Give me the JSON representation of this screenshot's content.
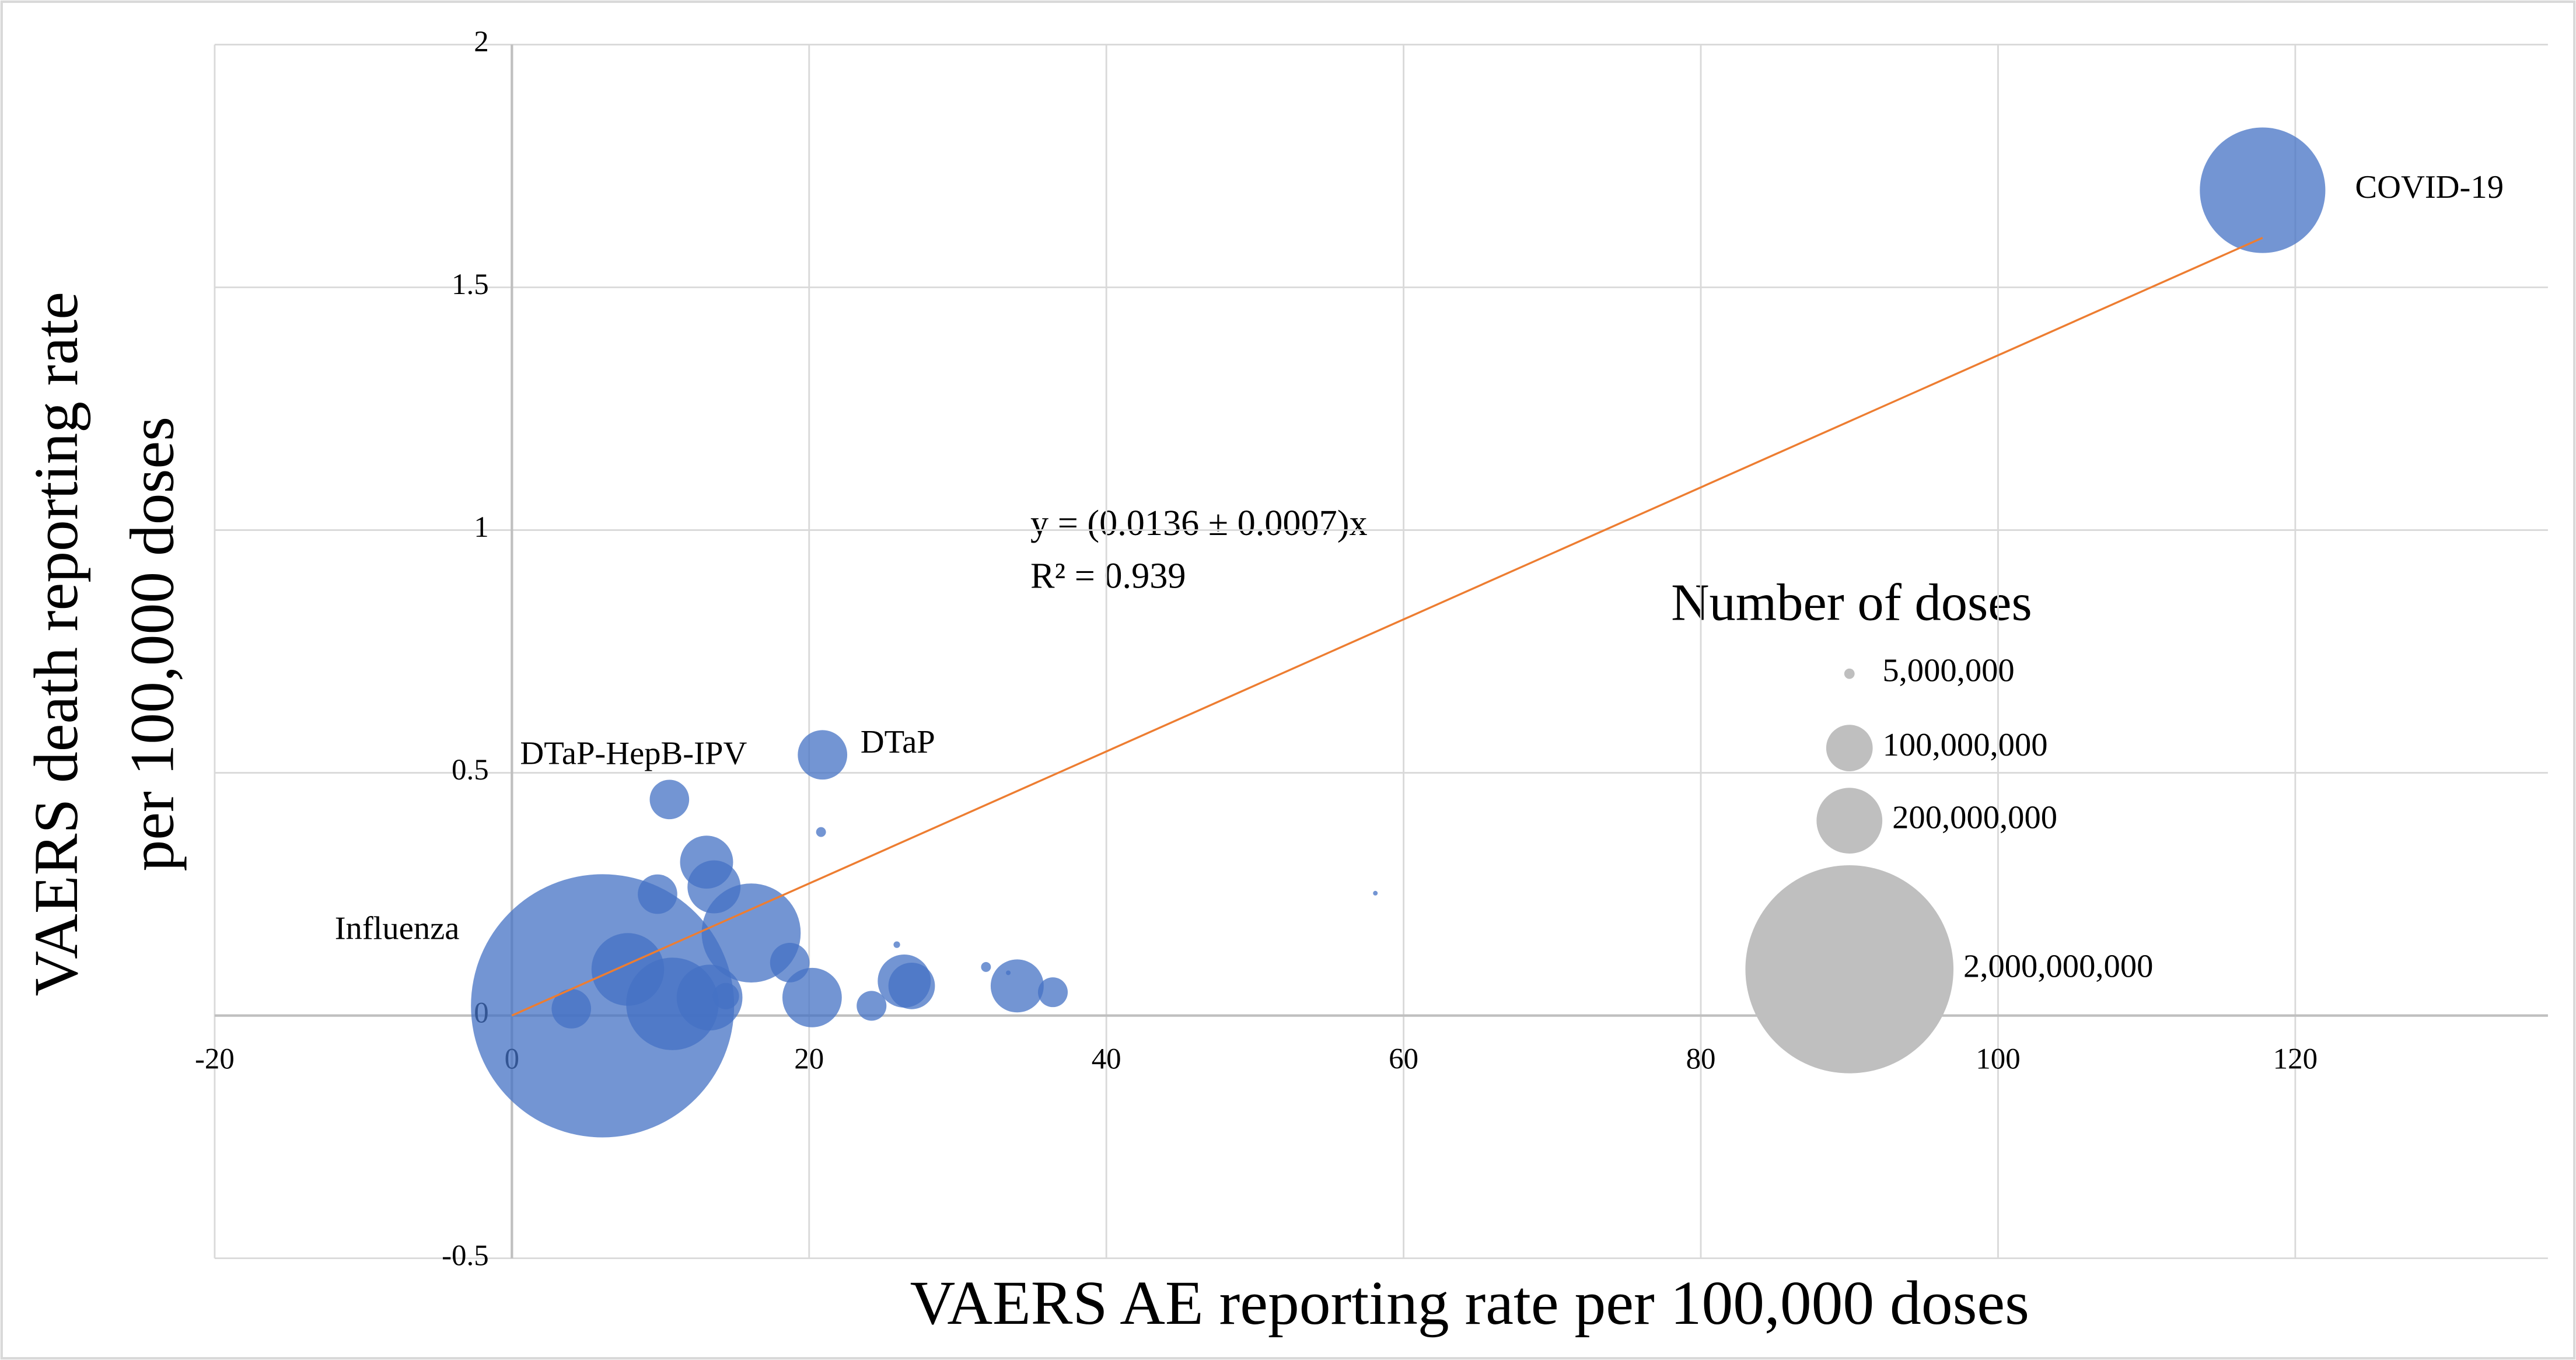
{
  "chart_data": {
    "type": "bubble",
    "xlabel": "VAERS AE reporting rate per 100,000 doses",
    "ylabel": [
      "VAERS death reporting rate",
      "per 100,000 doses"
    ],
    "xlim": [
      -20,
      137
    ],
    "ylim": [
      -0.5,
      2
    ],
    "xticks": [
      -20,
      0,
      20,
      40,
      60,
      80,
      100,
      120
    ],
    "yticks": [
      -0.5,
      0,
      0.5,
      1,
      1.5,
      2
    ],
    "grid": true,
    "series": [
      {
        "color": "#4472c4",
        "x": [
          117.8,
          6.1,
          20.9,
          10.6,
          13.1,
          13.6,
          9.8,
          16.1,
          7.8,
          10.8,
          13.3,
          14.4,
          4.0,
          18.7,
          20.2,
          24.2,
          26.4,
          26.9,
          34.0,
          36.4,
          20.8,
          25.9,
          31.9,
          33.4,
          58.1
        ],
        "y": [
          1.7,
          0.02,
          0.537,
          0.445,
          0.316,
          0.265,
          0.25,
          0.17,
          0.095,
          0.024,
          0.037,
          0.04,
          0.014,
          0.109,
          0.037,
          0.02,
          0.071,
          0.061,
          0.061,
          0.048,
          0.378,
          0.146,
          0.1,
          0.088,
          0.252
        ],
        "sizes": [
          728000000,
          3200000000,
          113000000,
          72000000,
          130000000,
          130000000,
          72000000,
          453000000,
          244000000,
          395000000,
          200000000,
          32000000,
          72000000,
          72000000,
          163000000,
          41000000,
          130000000,
          100000000,
          130000000,
          41000000,
          4500000,
          2000000,
          4500000,
          1000000,
          1000000
        ],
        "point_labels": [
          "COVID-19",
          "Influenza",
          "DTaP",
          "DTaP-HepB-IPV",
          null,
          null,
          null,
          null,
          null,
          null,
          null,
          null,
          null,
          null,
          null,
          null,
          null,
          null,
          null,
          null,
          null,
          null,
          null,
          null,
          null
        ]
      }
    ],
    "trendline": {
      "slope": 0.0136,
      "x": [
        0,
        117.8
      ],
      "color": "#ed7d31"
    },
    "annotation": [
      "y = (0.0136 ± 0.0007)x",
      "R² = 0.939"
    ],
    "size_legend": {
      "title": "Number of doses",
      "color": "#bfbfbf",
      "sizes": [
        5000000,
        100000000,
        200000000,
        2000000000
      ],
      "labels": [
        "5,000,000",
        "100,000,000",
        "200,000,000",
        "2,000,000,000"
      ]
    }
  }
}
